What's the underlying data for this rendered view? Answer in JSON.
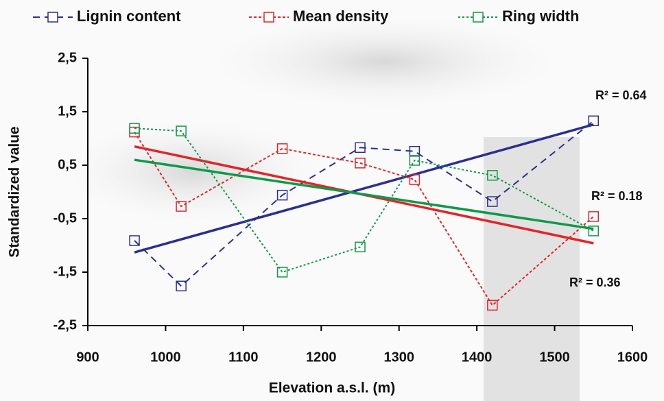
{
  "chart_data": {
    "type": "line",
    "x_label": "Elevation a.s.l. (m)",
    "y_label": "Standardized value",
    "xlim": [
      900,
      1600
    ],
    "xticks": [
      900,
      1000,
      1100,
      1200,
      1300,
      1400,
      1500,
      1600
    ],
    "ylim": [
      -2.5,
      2.5
    ],
    "yticks": [
      {
        "value": 2.5,
        "label": "2,5"
      },
      {
        "value": 1.5,
        "label": "1,5"
      },
      {
        "value": 0.5,
        "label": "0,5"
      },
      {
        "value": -0.5,
        "label": "-0,5"
      },
      {
        "value": -1.5,
        "label": "-1,5"
      },
      {
        "value": -2.5,
        "label": "-2,5"
      }
    ],
    "legend_position": "top",
    "series": [
      {
        "name": "Lignin content",
        "color": "#2b2f8f",
        "dash": "10 7",
        "x": [
          960,
          1020,
          1150,
          1250,
          1320,
          1420,
          1550
        ],
        "values": [
          -0.91,
          -1.76,
          -0.06,
          0.83,
          0.76,
          -0.18,
          1.33
        ],
        "trendline": {
          "x": [
            960,
            1550
          ],
          "values": [
            -1.13,
            1.26
          ]
        }
      },
      {
        "name": "Mean density",
        "color": "#e0262b",
        "dash": "4 3",
        "x": [
          960,
          1020,
          1150,
          1250,
          1320,
          1420,
          1550
        ],
        "values": [
          1.12,
          -0.27,
          0.81,
          0.54,
          0.23,
          -2.12,
          -0.46
        ],
        "trendline": {
          "x": [
            960,
            1550
          ],
          "values": [
            0.85,
            -0.96
          ]
        }
      },
      {
        "name": "Ring width",
        "color": "#0e9a48",
        "dash": "3 3",
        "x": [
          960,
          1020,
          1150,
          1250,
          1320,
          1420,
          1550
        ],
        "values": [
          1.19,
          1.14,
          -1.5,
          -1.03,
          0.59,
          0.31,
          -0.73
        ],
        "trendline": {
          "x": [
            960,
            1550
          ],
          "values": [
            0.6,
            -0.69
          ]
        }
      }
    ],
    "annotations": [
      "R² = 0.64",
      "R² = 0.18",
      "R² = 0.36"
    ]
  }
}
